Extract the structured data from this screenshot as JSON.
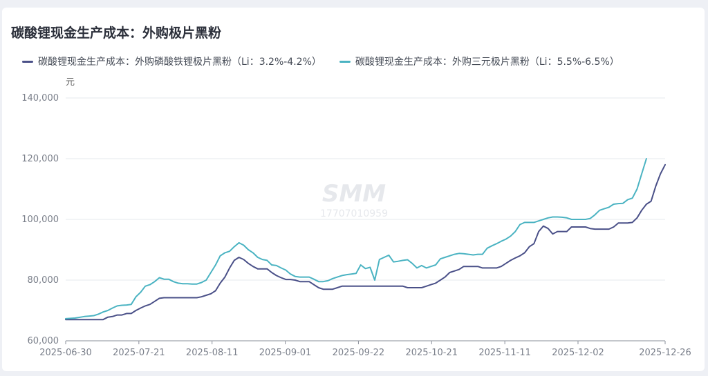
{
  "chart_data": {
    "type": "line",
    "title": "碳酸锂现金生产成本：外购极片黑粉",
    "ylabel": "元",
    "ylim": [
      60000,
      140000
    ],
    "yticks": [
      "60,000",
      "80,000",
      "100,000",
      "120,000",
      "140,000"
    ],
    "ytick_values": [
      60000,
      80000,
      100000,
      120000,
      140000
    ],
    "xticks": [
      "2025-06-30",
      "2025-07-21",
      "2025-08-11",
      "2025-09-01",
      "2025-09-22",
      "2025-10-21",
      "2025-11-11",
      "2025-12-02",
      "2025-12-26"
    ],
    "xtick_days": [
      0,
      21,
      42,
      63,
      84,
      105,
      126,
      147,
      172
    ],
    "grid": true,
    "legend_position": "top-left",
    "watermark": {
      "text": "SMM",
      "sub": "17707010959"
    },
    "series": [
      {
        "name": "碳酸锂现金生产成本：外购磷酸铁锂极片黑粉（Li：3.2%-4.2%）",
        "color": "#4a5088",
        "points": [
          [
            0,
            67000
          ],
          [
            4,
            67000
          ],
          [
            8,
            67000
          ],
          [
            12,
            67000
          ],
          [
            14,
            67000
          ],
          [
            16,
            67000
          ],
          [
            18,
            67800
          ],
          [
            20,
            68000
          ],
          [
            22,
            68500
          ],
          [
            24,
            68500
          ],
          [
            26,
            69000
          ],
          [
            28,
            69000
          ],
          [
            30,
            70000
          ],
          [
            32,
            70800
          ],
          [
            34,
            71500
          ],
          [
            36,
            72000
          ],
          [
            38,
            73000
          ],
          [
            40,
            74000
          ],
          [
            42,
            74200
          ],
          [
            44,
            74200
          ],
          [
            46,
            74200
          ],
          [
            48,
            74200
          ],
          [
            50,
            74200
          ],
          [
            52,
            74200
          ],
          [
            54,
            74200
          ],
          [
            56,
            74200
          ],
          [
            58,
            74500
          ],
          [
            60,
            75000
          ],
          [
            62,
            75500
          ],
          [
            64,
            76500
          ],
          [
            66,
            79000
          ],
          [
            68,
            81000
          ],
          [
            70,
            84000
          ],
          [
            72,
            86500
          ],
          [
            74,
            87500
          ],
          [
            76,
            86800
          ],
          [
            78,
            85500
          ],
          [
            80,
            84500
          ],
          [
            82,
            83700
          ],
          [
            84,
            83700
          ],
          [
            86,
            83700
          ],
          [
            88,
            82500
          ],
          [
            90,
            81500
          ],
          [
            92,
            80800
          ],
          [
            94,
            80200
          ],
          [
            96,
            80200
          ],
          [
            98,
            80000
          ],
          [
            100,
            79500
          ],
          [
            102,
            79500
          ],
          [
            104,
            79500
          ],
          [
            106,
            78500
          ],
          [
            108,
            77500
          ],
          [
            110,
            77000
          ],
          [
            112,
            77000
          ],
          [
            114,
            77000
          ],
          [
            116,
            77500
          ],
          [
            118,
            78000
          ],
          [
            120,
            78000
          ],
          [
            122,
            78000
          ],
          [
            124,
            78000
          ],
          [
            126,
            78000
          ],
          [
            128,
            78000
          ],
          [
            130,
            78000
          ],
          [
            132,
            78000
          ],
          [
            134,
            78000
          ],
          [
            136,
            78000
          ],
          [
            138,
            78000
          ],
          [
            140,
            78000
          ],
          [
            142,
            78000
          ],
          [
            144,
            78000
          ],
          [
            146,
            77500
          ],
          [
            148,
            77500
          ],
          [
            150,
            77500
          ],
          [
            152,
            77500
          ],
          [
            154,
            78000
          ],
          [
            156,
            78500
          ],
          [
            158,
            79000
          ],
          [
            160,
            80000
          ],
          [
            162,
            81000
          ],
          [
            164,
            82500
          ],
          [
            166,
            83000
          ],
          [
            168,
            83500
          ],
          [
            170,
            84500
          ],
          [
            172,
            84500
          ],
          [
            174,
            84500
          ],
          [
            176,
            84500
          ],
          [
            178,
            84000
          ],
          [
            180,
            84000
          ],
          [
            182,
            84000
          ],
          [
            184,
            84000
          ],
          [
            186,
            84500
          ],
          [
            188,
            85500
          ],
          [
            190,
            86500
          ],
          [
            192,
            87300
          ],
          [
            194,
            88000
          ],
          [
            196,
            89000
          ],
          [
            198,
            91000
          ],
          [
            200,
            92000
          ],
          [
            202,
            96000
          ],
          [
            204,
            97800
          ],
          [
            206,
            97000
          ],
          [
            208,
            95200
          ],
          [
            210,
            96000
          ],
          [
            212,
            96000
          ],
          [
            214,
            96000
          ],
          [
            216,
            97500
          ],
          [
            218,
            97500
          ],
          [
            220,
            97500
          ],
          [
            222,
            97500
          ],
          [
            224,
            97000
          ],
          [
            226,
            96800
          ],
          [
            228,
            96800
          ],
          [
            230,
            96800
          ],
          [
            232,
            96800
          ],
          [
            234,
            97500
          ],
          [
            236,
            98800
          ],
          [
            238,
            98800
          ],
          [
            240,
            98800
          ],
          [
            242,
            99000
          ],
          [
            244,
            100500
          ],
          [
            246,
            103000
          ],
          [
            248,
            105000
          ],
          [
            250,
            106000
          ],
          [
            252,
            111000
          ],
          [
            254,
            115000
          ],
          [
            256,
            118000
          ]
        ]
      },
      {
        "name": "碳酸锂现金生产成本：外购三元极片黑粉（Li：5.5%-6.5%）",
        "color": "#4ab3c2",
        "points": [
          [
            0,
            67300
          ],
          [
            4,
            67500
          ],
          [
            8,
            68000
          ],
          [
            12,
            68300
          ],
          [
            14,
            68800
          ],
          [
            16,
            69500
          ],
          [
            18,
            70000
          ],
          [
            20,
            70800
          ],
          [
            22,
            71500
          ],
          [
            24,
            71700
          ],
          [
            26,
            71800
          ],
          [
            28,
            72000
          ],
          [
            30,
            74500
          ],
          [
            32,
            76000
          ],
          [
            34,
            78000
          ],
          [
            36,
            78500
          ],
          [
            38,
            79500
          ],
          [
            40,
            80800
          ],
          [
            42,
            80300
          ],
          [
            44,
            80300
          ],
          [
            46,
            79500
          ],
          [
            48,
            79000
          ],
          [
            50,
            78800
          ],
          [
            52,
            78800
          ],
          [
            54,
            78700
          ],
          [
            56,
            78700
          ],
          [
            58,
            79200
          ],
          [
            60,
            80000
          ],
          [
            62,
            82500
          ],
          [
            64,
            85000
          ],
          [
            66,
            88000
          ],
          [
            68,
            89000
          ],
          [
            70,
            89500
          ],
          [
            72,
            91000
          ],
          [
            74,
            92300
          ],
          [
            76,
            91500
          ],
          [
            78,
            90000
          ],
          [
            80,
            89000
          ],
          [
            82,
            87500
          ],
          [
            84,
            86800
          ],
          [
            86,
            86500
          ],
          [
            88,
            85000
          ],
          [
            90,
            84800
          ],
          [
            92,
            84000
          ],
          [
            94,
            83300
          ],
          [
            96,
            82000
          ],
          [
            98,
            81200
          ],
          [
            100,
            81000
          ],
          [
            102,
            81000
          ],
          [
            104,
            81000
          ],
          [
            106,
            80300
          ],
          [
            108,
            79500
          ],
          [
            110,
            79500
          ],
          [
            112,
            79800
          ],
          [
            114,
            80500
          ],
          [
            116,
            81000
          ],
          [
            118,
            81500
          ],
          [
            120,
            81800
          ],
          [
            122,
            82000
          ],
          [
            124,
            82200
          ],
          [
            126,
            85000
          ],
          [
            128,
            83800
          ],
          [
            130,
            84200
          ],
          [
            132,
            80000
          ],
          [
            134,
            86800
          ],
          [
            136,
            87500
          ],
          [
            138,
            88200
          ],
          [
            140,
            86000
          ],
          [
            142,
            86200
          ],
          [
            144,
            86500
          ],
          [
            146,
            86700
          ],
          [
            148,
            85500
          ],
          [
            150,
            84000
          ],
          [
            152,
            84800
          ],
          [
            154,
            84000
          ],
          [
            156,
            84500
          ],
          [
            158,
            85000
          ],
          [
            160,
            87000
          ],
          [
            162,
            87500
          ],
          [
            164,
            88000
          ],
          [
            166,
            88500
          ],
          [
            168,
            88800
          ],
          [
            170,
            88700
          ],
          [
            172,
            88500
          ],
          [
            174,
            88300
          ],
          [
            176,
            88500
          ],
          [
            178,
            88500
          ],
          [
            180,
            90500
          ],
          [
            182,
            91300
          ],
          [
            184,
            92000
          ],
          [
            186,
            92800
          ],
          [
            188,
            93500
          ],
          [
            190,
            94500
          ],
          [
            192,
            96000
          ],
          [
            194,
            98300
          ],
          [
            196,
            99000
          ],
          [
            198,
            99000
          ],
          [
            200,
            99000
          ],
          [
            202,
            99500
          ],
          [
            204,
            100000
          ],
          [
            206,
            100500
          ],
          [
            208,
            100800
          ],
          [
            210,
            100800
          ],
          [
            212,
            100700
          ],
          [
            214,
            100500
          ],
          [
            216,
            100000
          ],
          [
            218,
            100000
          ],
          [
            220,
            100000
          ],
          [
            222,
            100000
          ],
          [
            224,
            100300
          ],
          [
            226,
            101500
          ],
          [
            228,
            103000
          ],
          [
            230,
            103500
          ],
          [
            232,
            104000
          ],
          [
            234,
            105000
          ],
          [
            236,
            105200
          ],
          [
            238,
            105300
          ],
          [
            240,
            106500
          ],
          [
            242,
            107000
          ],
          [
            244,
            110000
          ],
          [
            246,
            115000
          ],
          [
            248,
            120000
          ]
        ]
      }
    ]
  }
}
